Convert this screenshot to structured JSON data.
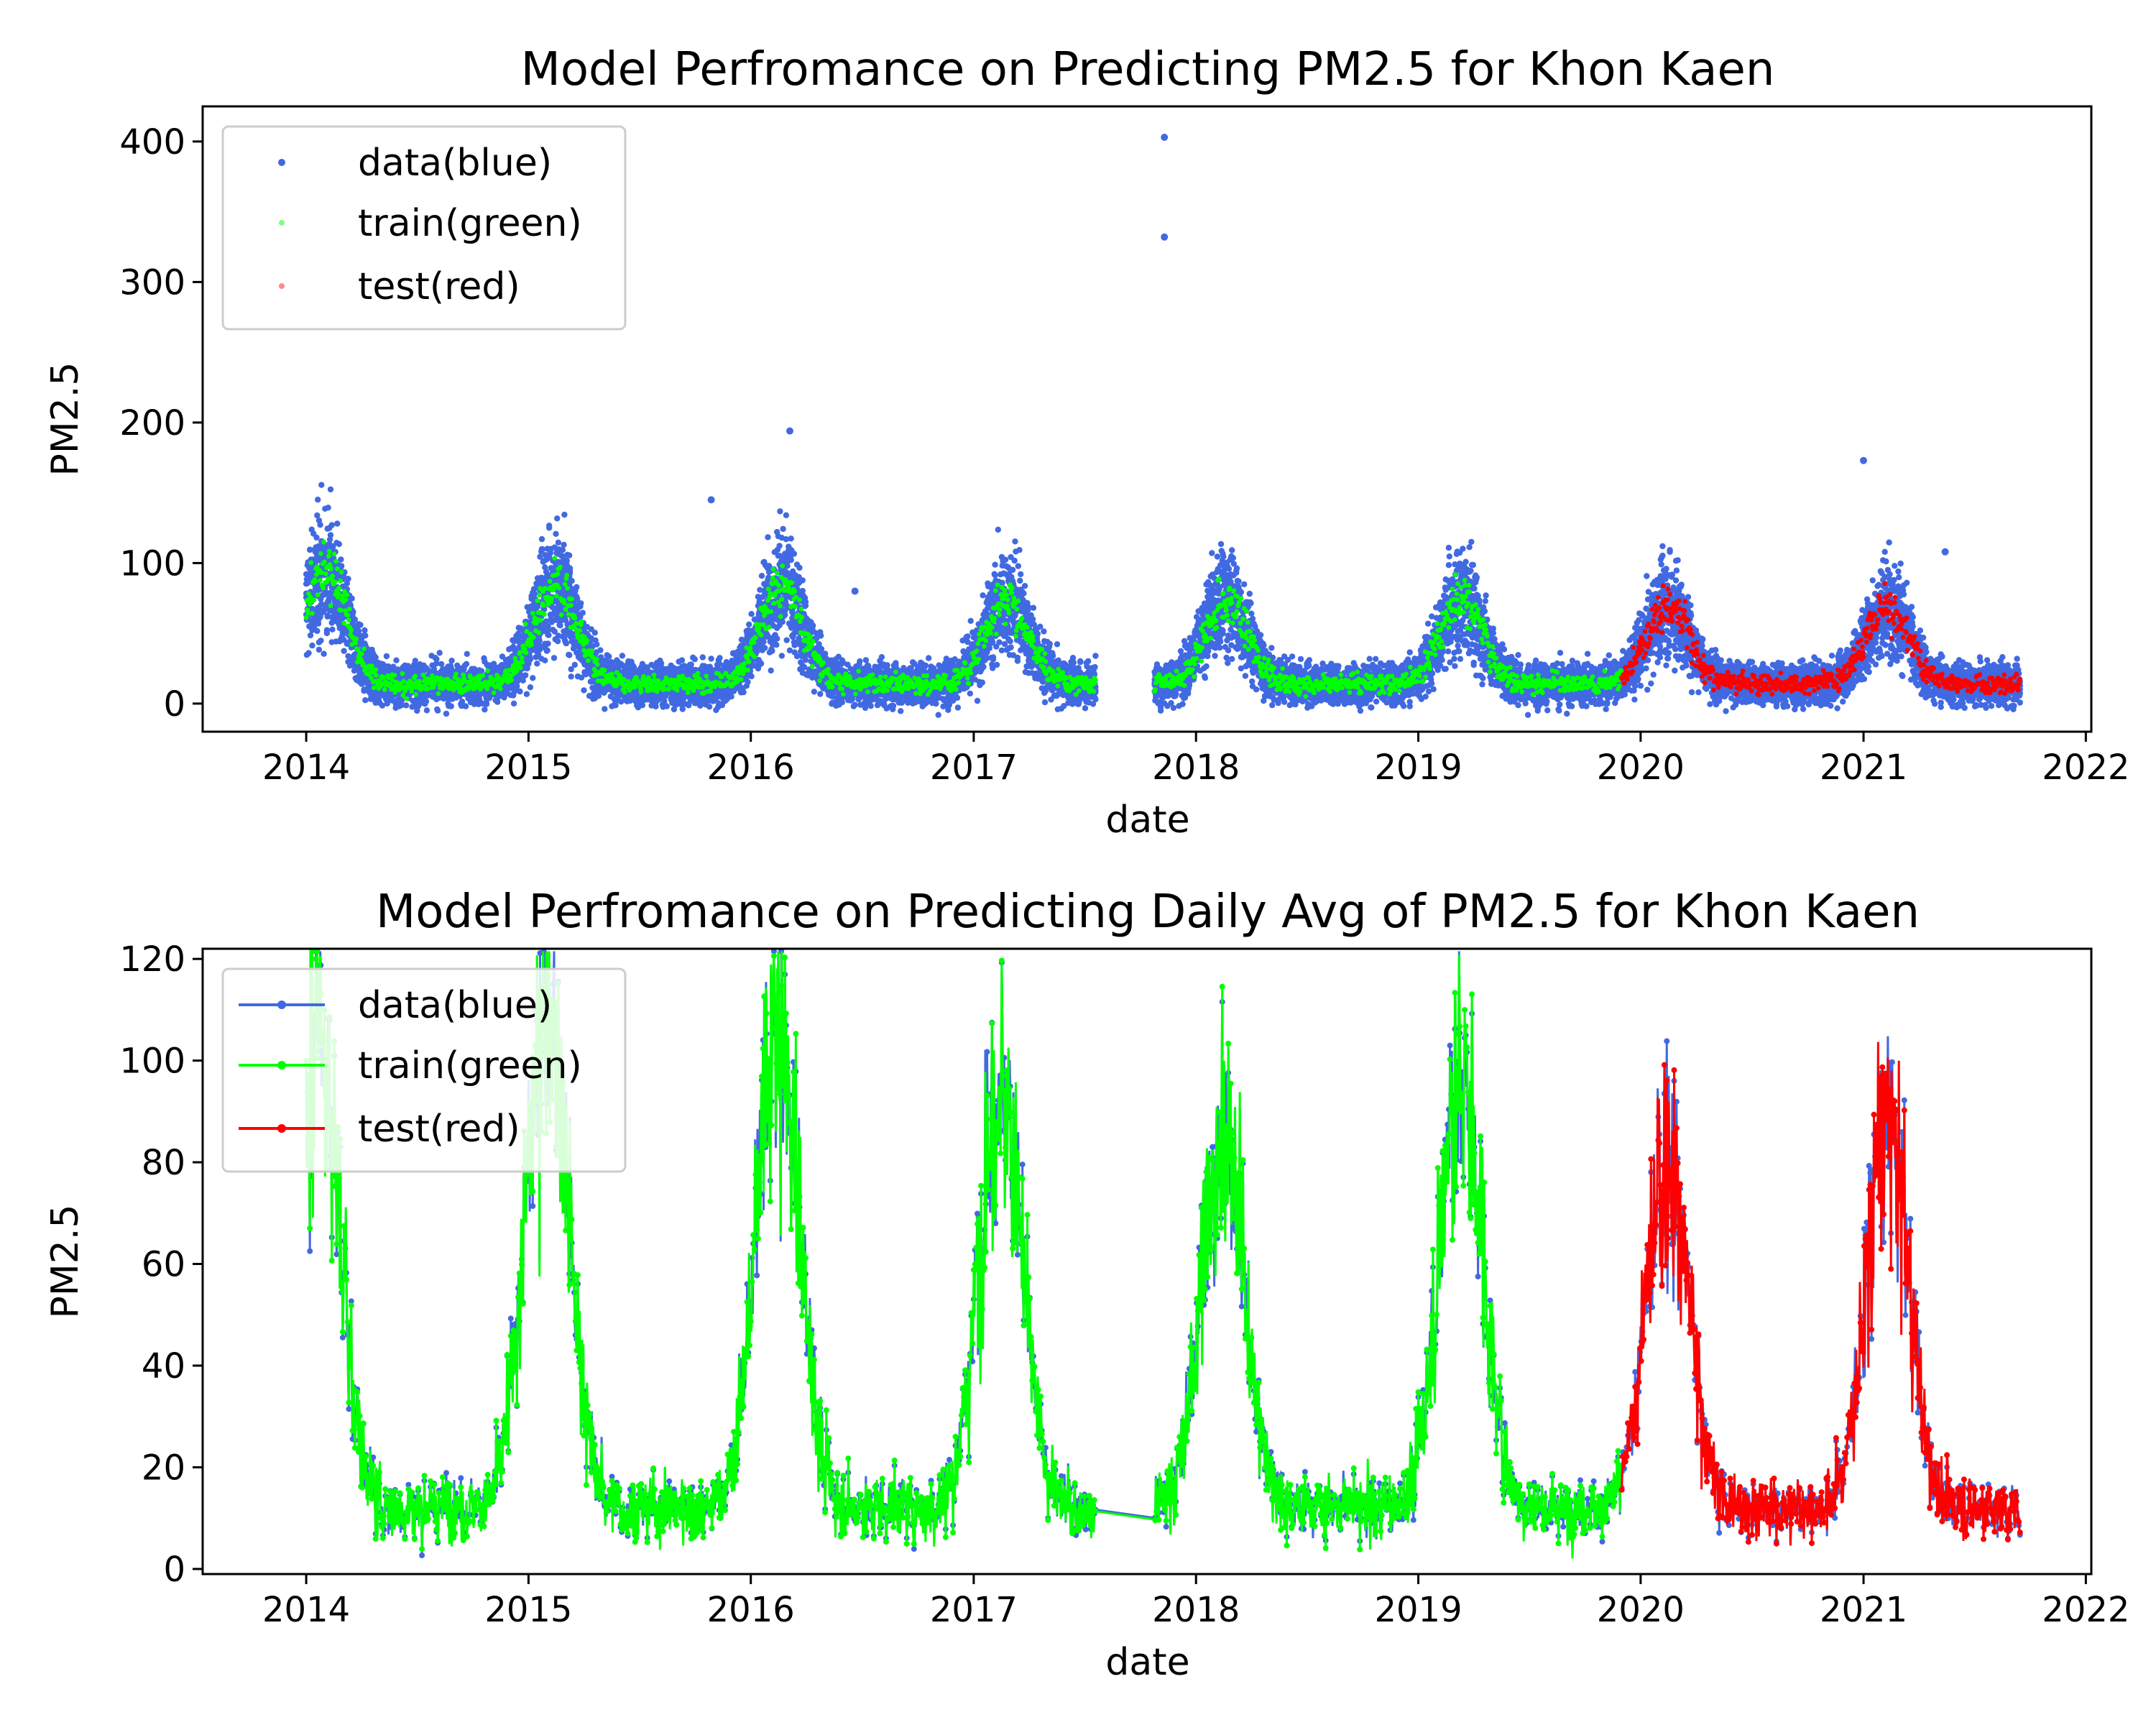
{
  "colors": {
    "data": "#4169e1",
    "train": "#00ff00",
    "test": "#ff0000"
  },
  "chart_data": [
    {
      "type": "scatter",
      "title": "Model Perfromance on Predicting PM2.5 for Khon Kaen",
      "xlabel": "date",
      "ylabel": "PM2.5",
      "xlim": [
        "2013-07-15",
        "2022-01-10"
      ],
      "ylim": [
        -20,
        425
      ],
      "xticks": [
        "2014",
        "2015",
        "2016",
        "2017",
        "2018",
        "2019",
        "2020",
        "2021",
        "2022"
      ],
      "yticks": [
        0,
        100,
        200,
        300,
        400
      ],
      "legend": {
        "placement": "upper-left",
        "entries": [
          "data(blue)",
          "train(green)",
          "test(red)"
        ]
      },
      "outliers": [
        {
          "x": "2017-11-10",
          "y": 403
        },
        {
          "x": "2017-11-10",
          "y": 332
        },
        {
          "x": "2016-03-05",
          "y": 194
        },
        {
          "x": "2021-01-01",
          "y": 173
        },
        {
          "x": "2015-10-28",
          "y": 145
        },
        {
          "x": "2021-05-15",
          "y": 108
        },
        {
          "x": "2016-06-20",
          "y": 80
        }
      ],
      "series": [
        {
          "name": "data(blue)",
          "seasonal_peaks": [
            {
              "x": "2014-02-01",
              "y": 80
            },
            {
              "x": "2015-02-15",
              "y": 70
            },
            {
              "x": "2016-02-20",
              "y": 70
            },
            {
              "x": "2017-02-25",
              "y": 60
            },
            {
              "x": "2018-02-20",
              "y": 60
            },
            {
              "x": "2019-03-10",
              "y": 60
            },
            {
              "x": "2020-02-15",
              "y": 55
            },
            {
              "x": "2021-02-10",
              "y": 55
            }
          ]
        },
        {
          "name": "train(green)",
          "range": [
            "2014-01-01",
            "2019-11-30"
          ]
        },
        {
          "name": "test(red)",
          "range": [
            "2019-12-01",
            "2021-09-15"
          ]
        }
      ],
      "gaps": [
        [
          "2017-07-20",
          "2017-10-25"
        ]
      ]
    },
    {
      "type": "line",
      "title": "Model Perfromance on Predicting Daily Avg of PM2.5 for Khon Kaen",
      "xlabel": "date",
      "ylabel": "PM2.5",
      "xlim": [
        "2013-07-15",
        "2022-01-10"
      ],
      "ylim": [
        -1,
        122
      ],
      "xticks": [
        "2014",
        "2015",
        "2016",
        "2017",
        "2018",
        "2019",
        "2020",
        "2021",
        "2022"
      ],
      "yticks": [
        0,
        20,
        40,
        60,
        80,
        100,
        120
      ],
      "legend": {
        "placement": "upper-left",
        "entries": [
          "data(blue)",
          "train(green)",
          "test(red)"
        ]
      },
      "series": [
        {
          "name": "data(blue)",
          "seasonal_peaks": [
            {
              "x": "2014-01-20",
              "y": 114
            },
            {
              "x": "2015-02-01",
              "y": 117
            },
            {
              "x": "2016-02-15",
              "y": 111
            },
            {
              "x": "2017-02-15",
              "y": 96
            },
            {
              "x": "2018-02-15",
              "y": 89
            },
            {
              "x": "2019-03-10",
              "y": 102
            },
            {
              "x": "2020-02-15",
              "y": 80
            },
            {
              "x": "2021-02-10",
              "y": 87
            }
          ]
        },
        {
          "name": "train(green)",
          "range": [
            "2014-01-01",
            "2019-11-30"
          ]
        },
        {
          "name": "test(red)",
          "range": [
            "2019-12-01",
            "2021-09-15"
          ]
        }
      ],
      "gaps": [
        [
          "2017-07-20",
          "2017-10-25"
        ]
      ]
    }
  ]
}
